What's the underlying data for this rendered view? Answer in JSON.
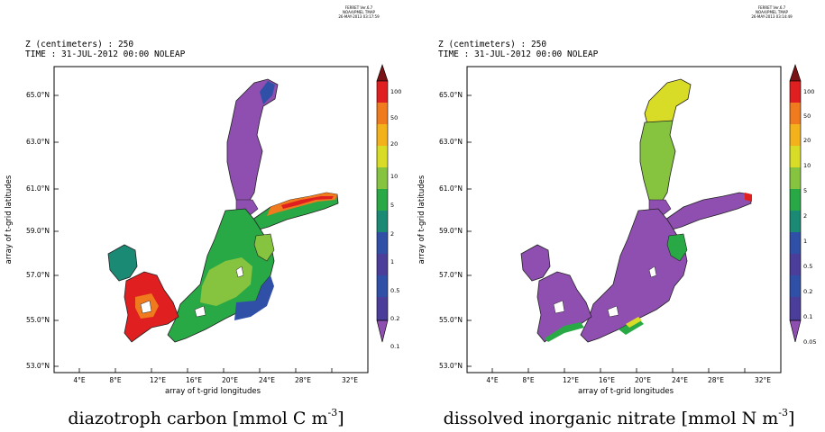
{
  "panels": [
    {
      "id": "left",
      "header_z": "Z (centimeters) : 250",
      "header_time": "TIME : 31-JUL-2012 00:00 NOLEAP",
      "ferret_line1": "FERRET  Ver.6.7",
      "ferret_line2": "NOAA/PMEL TMAP",
      "ferret_line3": "26-MAY-2013 03:17:59",
      "ylabel": "array of t-grid latitudes",
      "xlabel": "array of t-grid longitudes",
      "caption_text": "diazotroph carbon [mmol C  m",
      "caption_exp": "-3",
      "caption_end": "]",
      "colorbar_labels": [
        "100",
        "50",
        "20",
        "10",
        "5",
        "2",
        "1",
        "0.5",
        "0.2",
        "0.1"
      ]
    },
    {
      "id": "right",
      "header_z": "Z (centimeters) : 250",
      "header_time": "TIME : 31-JUL-2012 00:00 NOLEAP",
      "ferret_line1": "FERRET  Ver.6.7",
      "ferret_line2": "NOAA/PMEL TMAP",
      "ferret_line3": "26-MAY-2013 03:14:49",
      "ylabel": "array of t-grid latitudes",
      "xlabel": "array of t-grid longitudes",
      "caption_text": "dissolved inorganic nitrate [mmol N  m",
      "caption_exp": "-3",
      "caption_end": "]",
      "colorbar_labels": [
        "100",
        "50",
        "20",
        "10",
        "5",
        "2",
        "1",
        "0.5",
        "0.2",
        "0.1",
        "0.05"
      ]
    }
  ],
  "axes": {
    "lat_ticks": [
      "65.0°N",
      "63.0°N",
      "61.0°N",
      "59.0°N",
      "57.0°N",
      "55.0°N",
      "53.0°N"
    ],
    "lon_ticks": [
      "4°E",
      "8°E",
      "12°E",
      "16°E",
      "20°E",
      "24°E",
      "28°E",
      "32°E"
    ]
  },
  "colors": {
    "scale": [
      "#7a1315",
      "#e02020",
      "#f07a1e",
      "#f3b11c",
      "#d9dc26",
      "#86c440",
      "#29a945",
      "#1a8a74",
      "#3050a8",
      "#4a3e9a",
      "#8e4fb0"
    ],
    "left_map": {
      "bothnia": "#8e4fb0",
      "main_basin": "#29a945",
      "gulf_finland": "#29a945",
      "finland_edge": "#e02020",
      "danish": "#e02020",
      "kattegat_west": "#1a8a74",
      "coast": "#3050a8"
    },
    "right_map": {
      "bothnia_north": "#d9dc26",
      "bothnia": "#86c440",
      "main_basin": "#8e4fb0",
      "gulf_finland": "#8e4fb0",
      "danish": "#8e4fb0",
      "coast_green": "#29a945"
    }
  }
}
